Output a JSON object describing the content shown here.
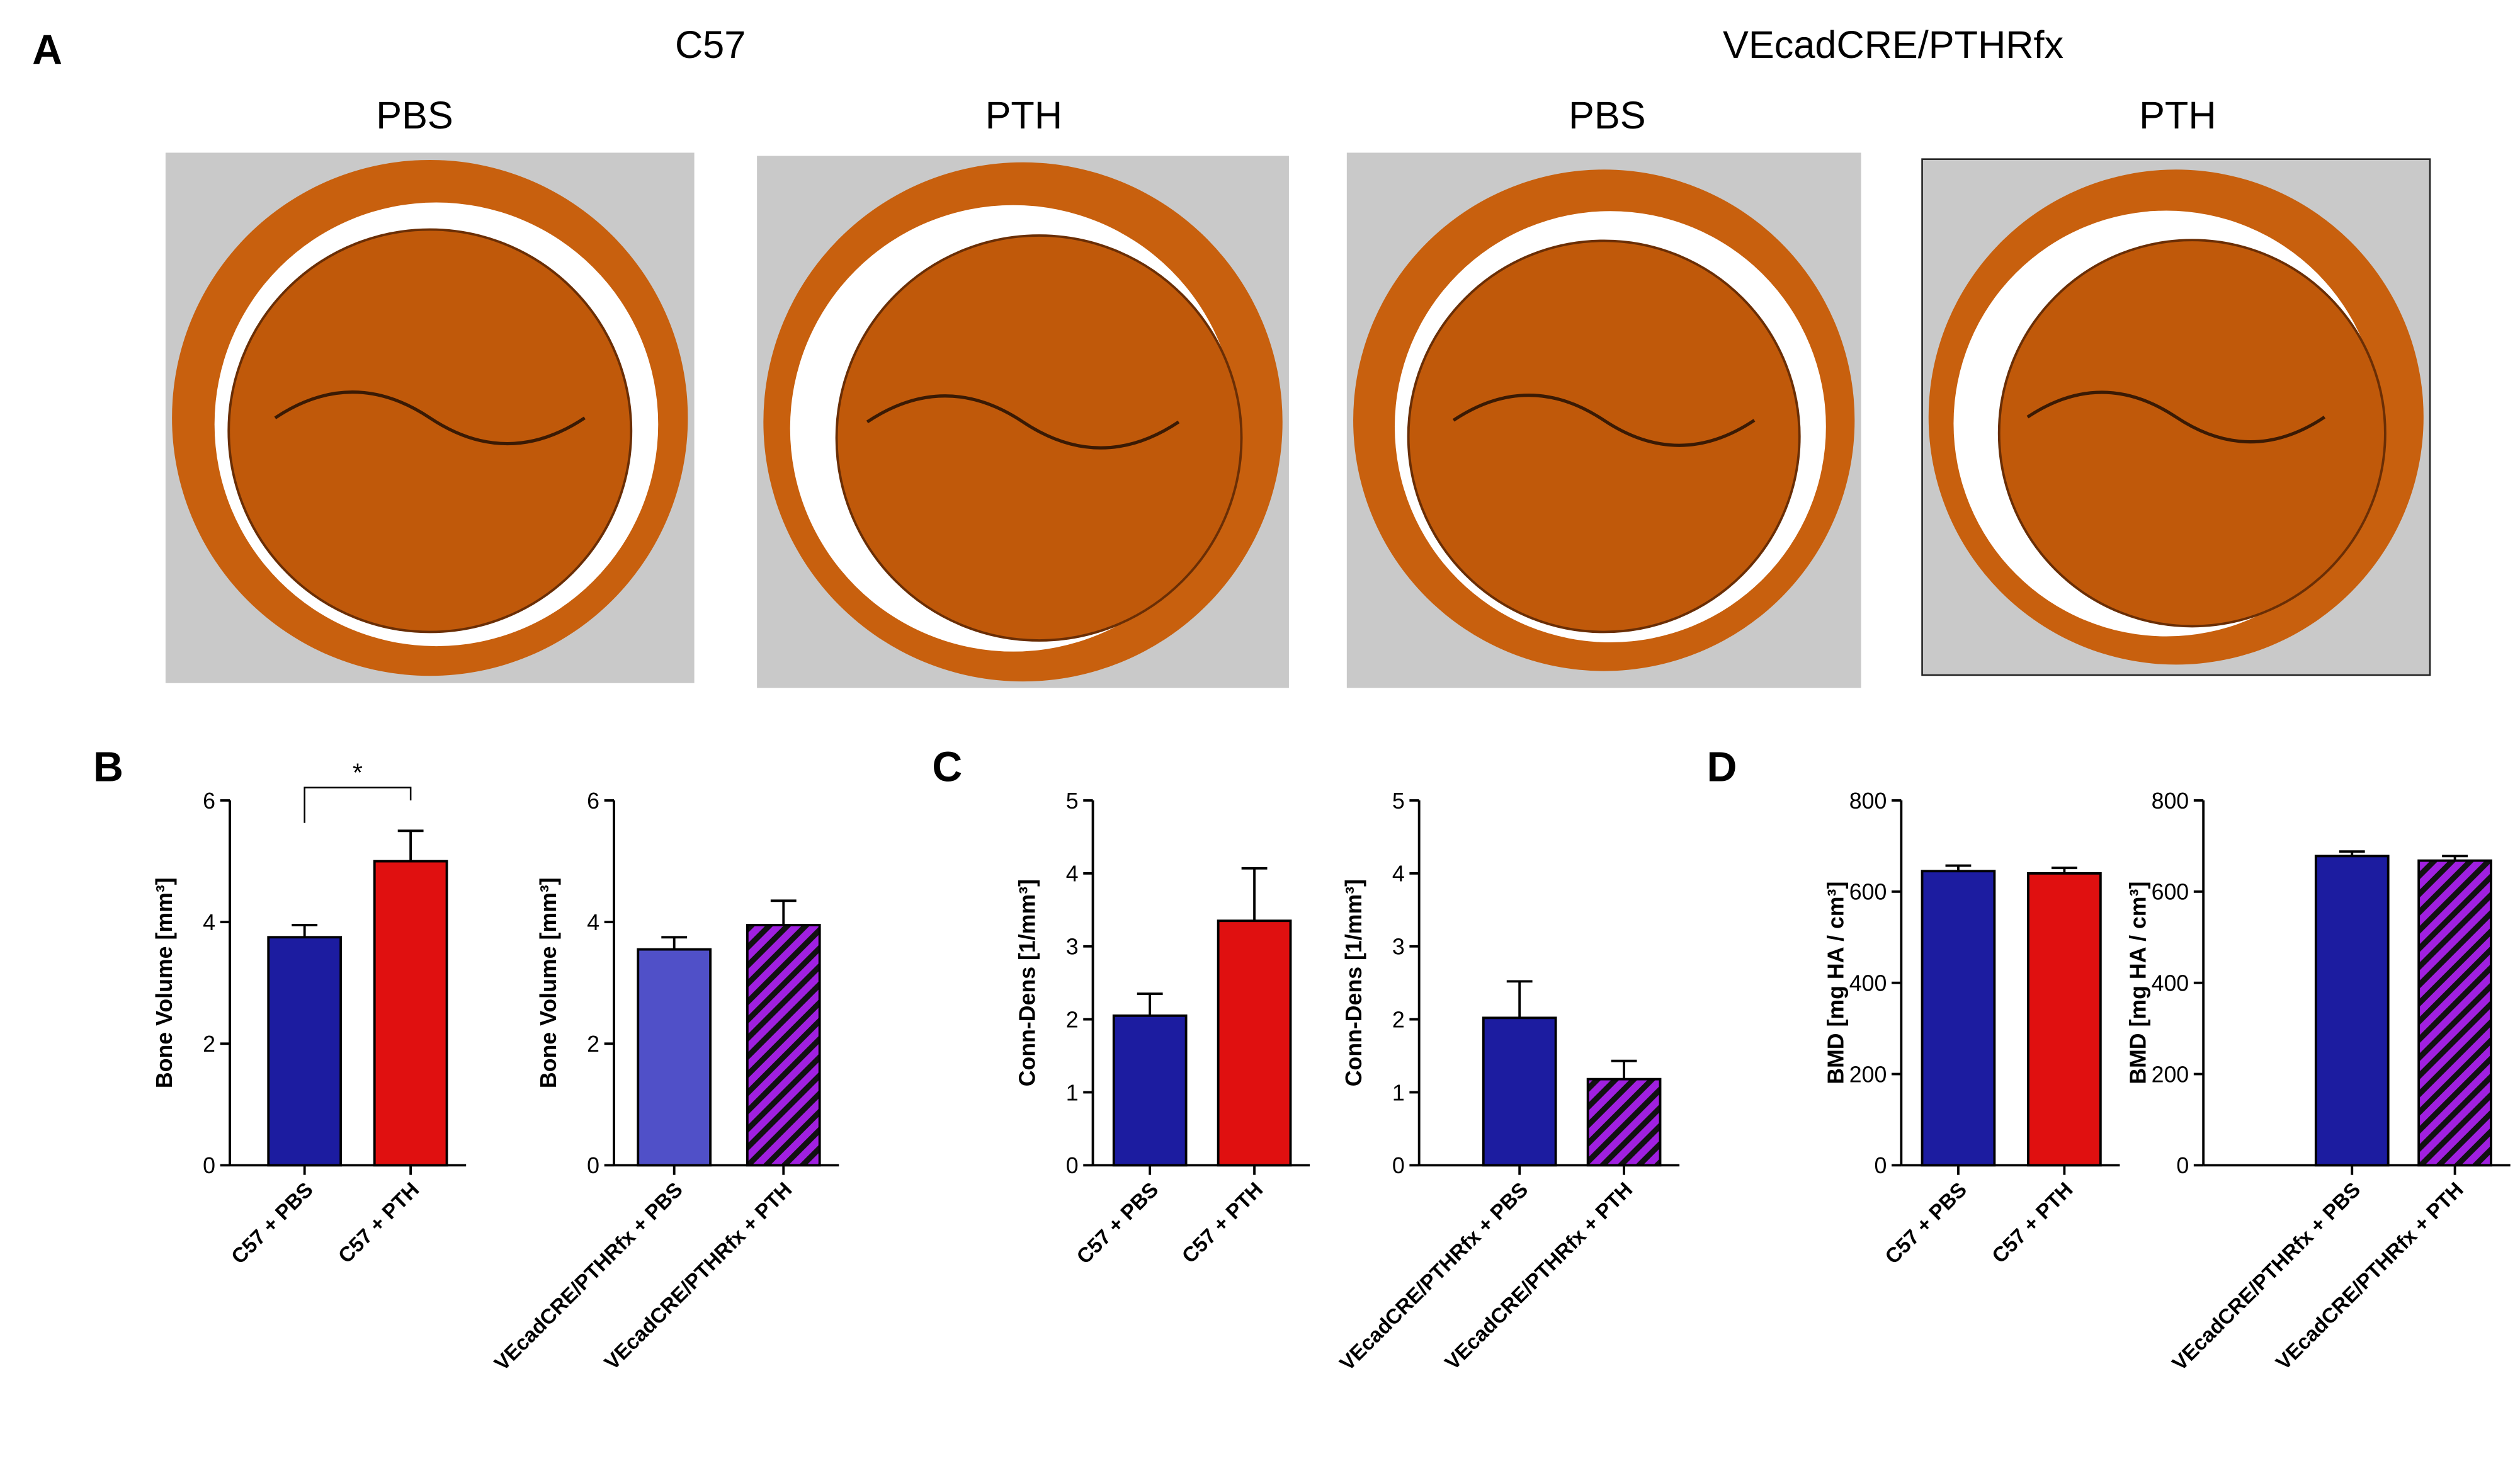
{
  "panel_labels": [
    "A",
    "B",
    "C",
    "D"
  ],
  "images": {
    "groups": [
      "C57",
      "VEcadCRE/PTHRfx"
    ],
    "conditions": [
      "PBS",
      "PTH",
      "PBS",
      "PTH"
    ]
  },
  "chart_data": [
    {
      "type": "bar",
      "ylabel": "Bone Volume [mm³]",
      "categories": [
        "C57 + PBS",
        "C57 + PTH"
      ],
      "values": [
        3.75,
        5.0
      ],
      "errors": [
        0.2,
        0.5
      ],
      "colors": [
        "#1c1ca0",
        "#e01010"
      ],
      "hatch": [
        false,
        false
      ],
      "ylim": [
        0,
        6
      ],
      "yticks": [
        0,
        2,
        4,
        6
      ],
      "annotation": "*"
    },
    {
      "type": "bar",
      "ylabel": "Bone Volume [mm³]",
      "categories": [
        "VEcadCRE/PTHRfx + PBS",
        "VEcadCRE/PTHRfx + PTH"
      ],
      "values": [
        3.55,
        3.95
      ],
      "errors": [
        0.2,
        0.4
      ],
      "colors": [
        "#5050c8",
        "#a020e0"
      ],
      "hatch": [
        false,
        true
      ],
      "ylim": [
        0,
        6
      ],
      "yticks": [
        0,
        2,
        4,
        6
      ]
    },
    {
      "type": "bar",
      "ylabel": "Conn-Dens [1/mm³]",
      "categories": [
        "C57 + PBS",
        "C57 + PTH"
      ],
      "values": [
        2.05,
        3.35
      ],
      "errors": [
        0.3,
        0.72
      ],
      "colors": [
        "#1c1ca0",
        "#e01010"
      ],
      "hatch": [
        false,
        false
      ],
      "ylim": [
        0,
        5
      ],
      "yticks": [
        0,
        1,
        2,
        3,
        4,
        5
      ]
    },
    {
      "type": "bar",
      "ylabel": "Conn-Dens [1/mm³]",
      "categories": [
        "VEcadCRE/PTHRfx + PBS",
        "VEcadCRE/PTHRfx + PTH"
      ],
      "values": [
        2.02,
        1.18
      ],
      "errors": [
        0.5,
        0.25
      ],
      "colors": [
        "#1c1ca0",
        "#a020e0"
      ],
      "hatch": [
        false,
        true
      ],
      "ylim": [
        0,
        5
      ],
      "yticks": [
        0,
        1,
        2,
        3,
        4,
        5
      ]
    },
    {
      "type": "bar",
      "ylabel": "BMD [mg HA / cm³]",
      "categories": [
        "C57 + PBS",
        "C57 + PTH"
      ],
      "values": [
        645,
        640
      ],
      "errors": [
        12,
        12
      ],
      "colors": [
        "#1c1ca0",
        "#e01010"
      ],
      "hatch": [
        false,
        false
      ],
      "ylim": [
        0,
        800
      ],
      "yticks": [
        0,
        200,
        400,
        600,
        800
      ]
    },
    {
      "type": "bar",
      "ylabel": "BMD [mg HA / cm³]",
      "categories": [
        "VEcadCRE/PTHRfx + PBS",
        "VEcadCRE/PTHRfx + PTH"
      ],
      "values": [
        678,
        668
      ],
      "errors": [
        10,
        10
      ],
      "colors": [
        "#1c1ca0",
        "#a020e0"
      ],
      "hatch": [
        false,
        true
      ],
      "ylim": [
        0,
        800
      ],
      "yticks": [
        0,
        200,
        400,
        600,
        800
      ]
    }
  ]
}
